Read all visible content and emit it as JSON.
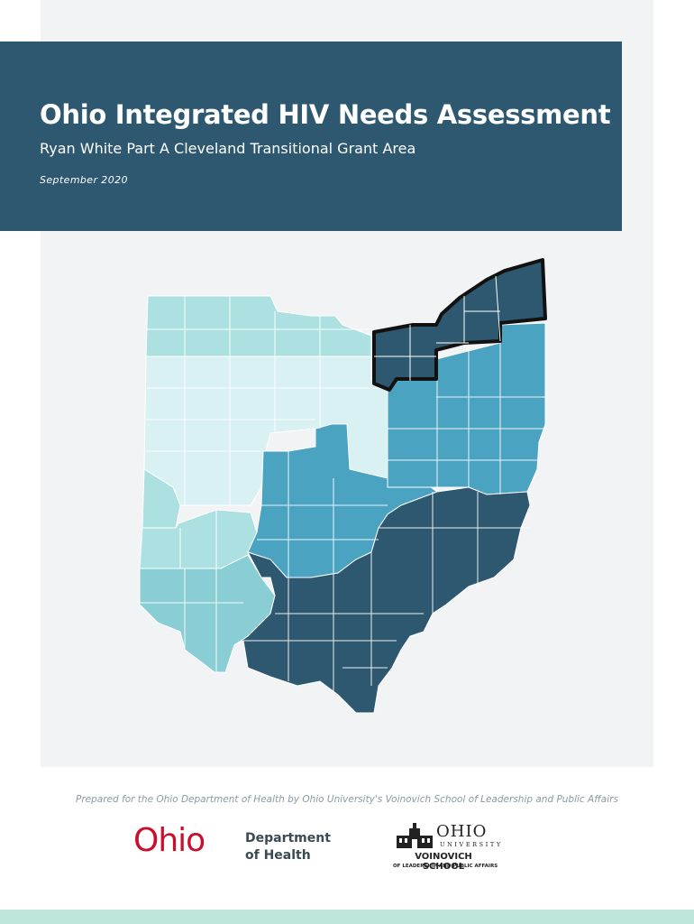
{
  "report": {
    "title": "Ohio Integrated HIV Needs Assessment",
    "subtitle": "Ryan White Part A Cleveland Transitional Grant Area",
    "date": "September 2020"
  },
  "map": {
    "legend_colors": {
      "cleveland_tga": "#2d586f",
      "dark_region": "#2d586f",
      "medium_region": "#4aa3c1",
      "light_region": "#89cdd5",
      "pale_region": "#ade0e0",
      "palest_region": "#d9f1f2"
    }
  },
  "footer": {
    "prepared_by": "Prepared for the Ohio Department of Health by Ohio University's Voinovich School of Leadership and Public Affairs",
    "odh_logo_word": "Ohio",
    "odh_department_line1": "Department",
    "odh_department_line2": "of Health",
    "ou_name": "OHIO",
    "ou_university": "UNIVERSITY",
    "ou_school": "VOINOVICH SCHOOL",
    "ou_tagline": "OF LEADERSHIP AND PUBLIC AFFAIRS"
  }
}
